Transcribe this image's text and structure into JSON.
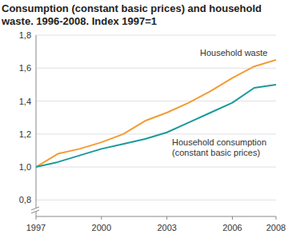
{
  "chart_data": {
    "type": "line",
    "title": "Consumption (constant basic prices) and household waste. 1996-2008. Index 1997=1",
    "x": [
      1997,
      1998,
      1999,
      2000,
      2001,
      2002,
      2003,
      2004,
      2005,
      2006,
      2007,
      2008
    ],
    "series": [
      {
        "name": "Household waste",
        "color": "#f39c34",
        "values": [
          1.0,
          1.08,
          1.11,
          1.15,
          1.2,
          1.28,
          1.33,
          1.39,
          1.46,
          1.54,
          1.61,
          1.65
        ]
      },
      {
        "name": "Household consumption (constant basic prices)",
        "color": "#1b9a9b",
        "values": [
          1.0,
          1.03,
          1.07,
          1.11,
          1.14,
          1.17,
          1.21,
          1.27,
          1.33,
          1.39,
          1.48,
          1.5
        ]
      }
    ],
    "xlim": [
      1997,
      2008
    ],
    "xticks": [
      1997,
      2000,
      2003,
      2006,
      2008
    ],
    "ylim": [
      0.7,
      1.8
    ],
    "yticks": [
      {
        "value": 0.8,
        "label": "0,8"
      },
      {
        "value": 1.0,
        "label": "1,0"
      },
      {
        "value": 1.2,
        "label": "1,2"
      },
      {
        "value": 1.4,
        "label": "1,4"
      },
      {
        "value": 1.6,
        "label": "1,6"
      },
      {
        "value": 1.8,
        "label": "1,8"
      }
    ],
    "grid": true
  }
}
